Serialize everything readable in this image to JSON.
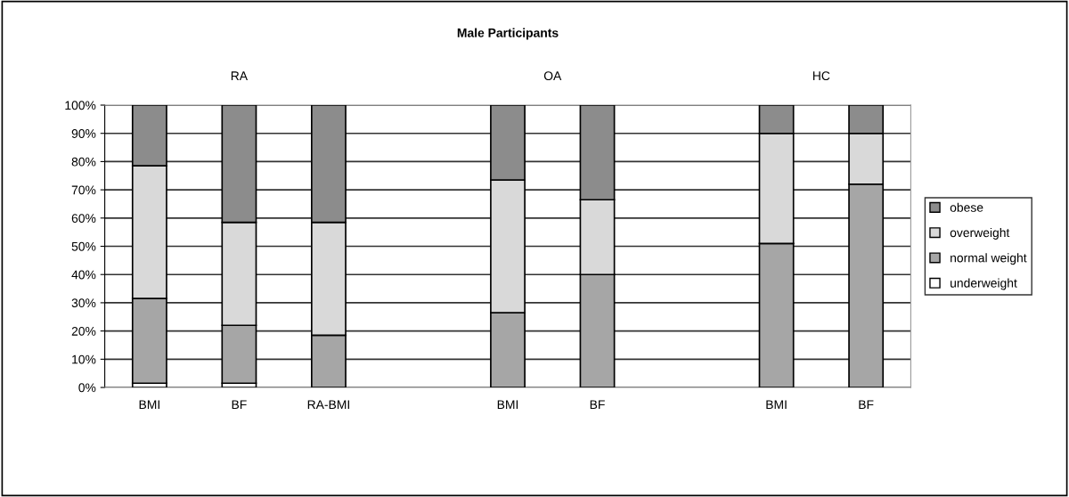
{
  "chart_data": {
    "type": "bar",
    "title": "Male Participants",
    "stacked": true,
    "categories": [
      "BMI",
      "BF",
      "RA-BMI",
      null,
      "BMI",
      "BF",
      null,
      "BMI",
      "BF"
    ],
    "series": [
      {
        "name": "underweight",
        "color": "#ffffff",
        "values": [
          1.5,
          1.5,
          0,
          null,
          0,
          0,
          null,
          0,
          0
        ]
      },
      {
        "name": "normal weight",
        "color": "#a6a6a6",
        "values": [
          30,
          20.5,
          18.5,
          null,
          26.5,
          40,
          null,
          51,
          72
        ]
      },
      {
        "name": "overweight",
        "color": "#d9d9d9",
        "values": [
          47,
          36.5,
          40,
          null,
          47,
          26.5,
          null,
          39,
          18
        ]
      },
      {
        "name": "obese",
        "color": "#8c8c8c",
        "values": [
          21.5,
          41.5,
          41.5,
          null,
          26.5,
          33.5,
          null,
          10,
          10
        ]
      }
    ],
    "annotations": [
      "RA",
      "OA",
      "HC"
    ],
    "ylim": [
      0,
      100
    ],
    "yticks": [
      {
        "value": 0,
        "label": "0%"
      },
      {
        "value": 10,
        "label": "10%"
      },
      {
        "value": 20,
        "label": "20%"
      },
      {
        "value": 30,
        "label": "30%"
      },
      {
        "value": 40,
        "label": "40%"
      },
      {
        "value": 50,
        "label": "50%"
      },
      {
        "value": 60,
        "label": "60%"
      },
      {
        "value": 70,
        "label": "70%"
      },
      {
        "value": 80,
        "label": "80%"
      },
      {
        "value": 90,
        "label": "90%"
      },
      {
        "value": 100,
        "label": "100%"
      }
    ],
    "grid": "y",
    "legend": "right"
  }
}
